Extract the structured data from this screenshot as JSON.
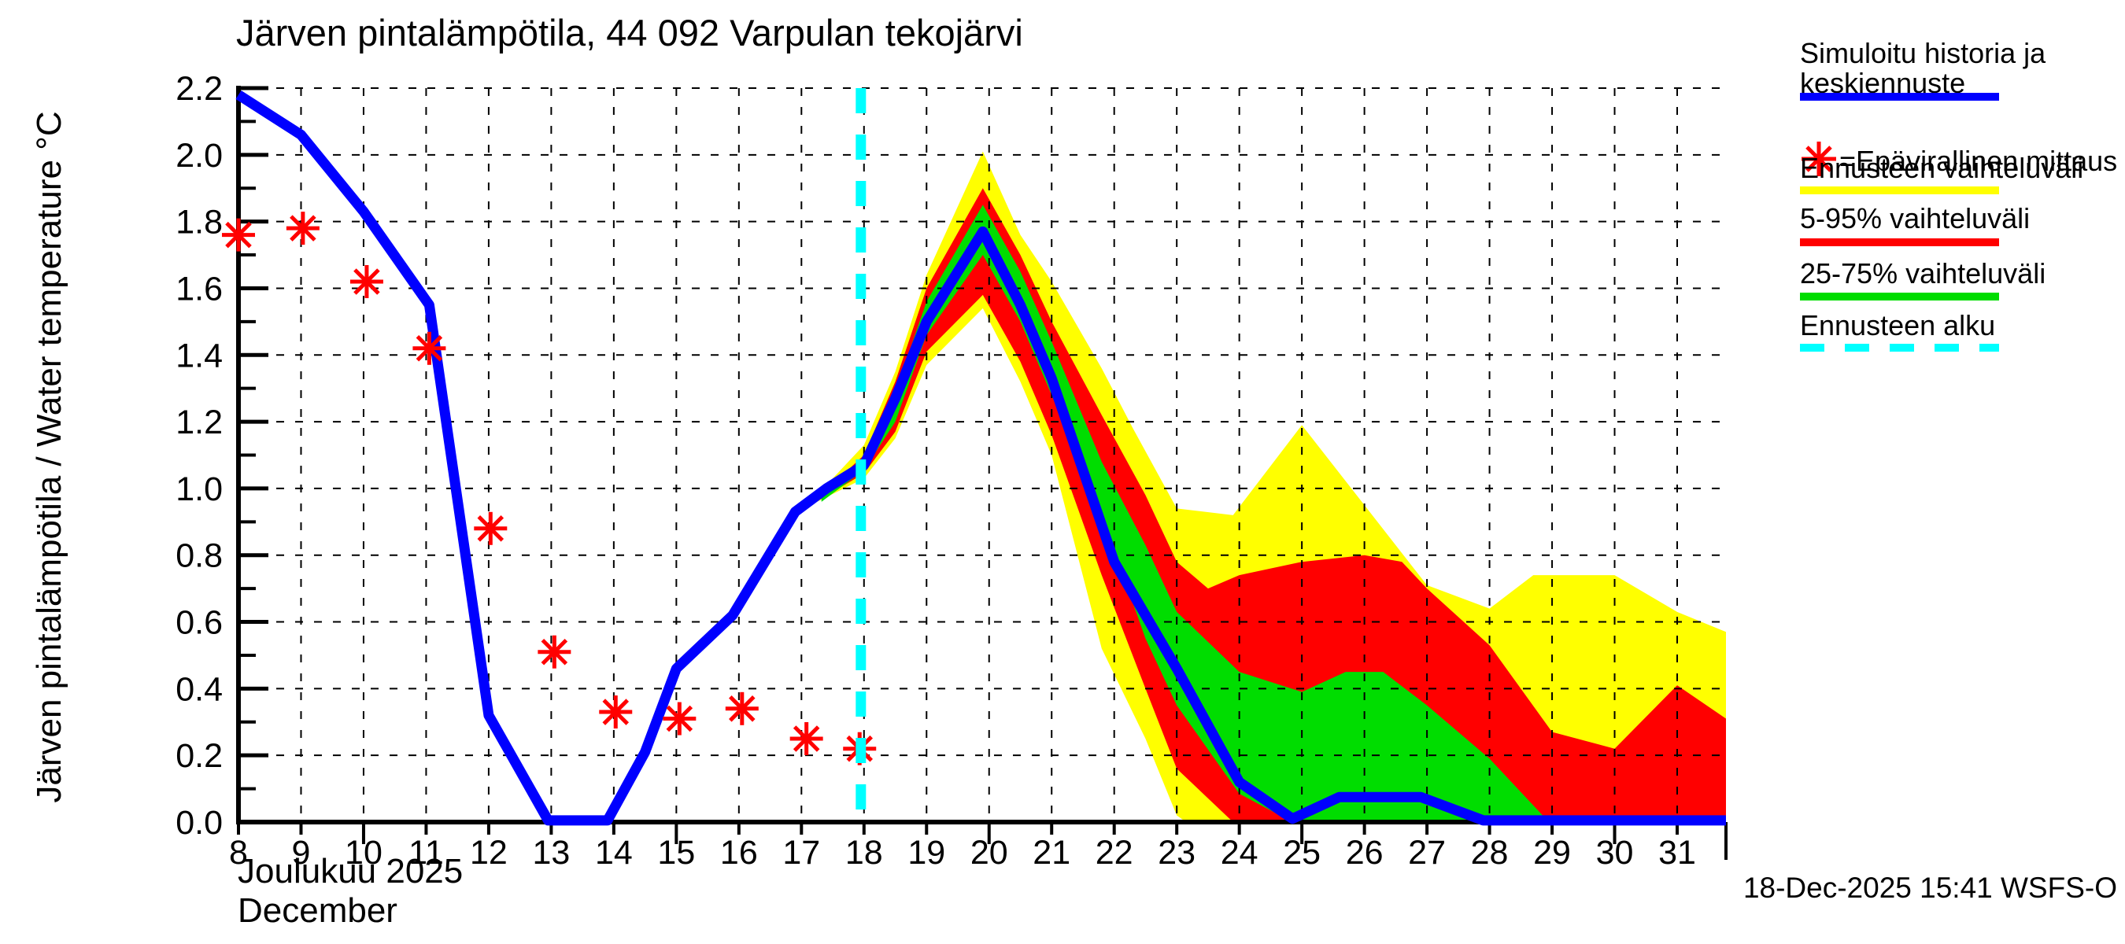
{
  "title": "Järven pintalämpötila, 44 092 Varpulan tekojärvi",
  "footer": {
    "timestamp": "18-Dec-2025 15:41 WSFS-O"
  },
  "legend": {
    "position": "outside-right",
    "items": [
      {
        "label": "Simuloitu historia ja keskiennuste",
        "label_line1": "Simuloitu historia ja",
        "label_line2": "keskiennuste",
        "swatch": "line",
        "color": "#0000ff"
      },
      {
        "label": "=Epävirallinen mittaus",
        "swatch": "asterisk-marker",
        "marker_color": "#ff0000",
        "color": "#ff0000"
      },
      {
        "label": "Ennusteen vaihteluväli",
        "swatch": "line",
        "color": "#ffff00"
      },
      {
        "label": "5-95% vaihteluväli",
        "swatch": "line",
        "color": "#ff0000"
      },
      {
        "label": "25-75% vaihteluväli",
        "swatch": "line",
        "color": "#00dd00"
      },
      {
        "label": "Ennusteen alku",
        "swatch": "dashed-line",
        "color": "#00ffff"
      }
    ]
  },
  "chart_data": {
    "type": "area",
    "title": "Järven pintalämpötila, 44 092 Varpulan tekojärvi",
    "ylabel": "Järven pintalämpötila / Water temperature °C",
    "xlabel_fi": "Joulukuu 2025",
    "xlabel_en": "December",
    "xlim": [
      8,
      31.78
    ],
    "ylim": [
      0,
      2.2
    ],
    "grid": true,
    "yticks": [
      "0.0",
      "0.2",
      "0.4",
      "0.6",
      "0.8",
      "1.0",
      "1.2",
      "1.4",
      "1.6",
      "1.8",
      "2.0",
      "2.2"
    ],
    "xticks": [
      8,
      9,
      10,
      11,
      12,
      13,
      14,
      15,
      16,
      17,
      18,
      19,
      20,
      21,
      22,
      23,
      24,
      25,
      26,
      27,
      28,
      29,
      30,
      31
    ],
    "forecast_start_day": 17.95,
    "series": [
      {
        "name": "Ennusteen vaihteluväli",
        "type": "band",
        "color": "#ffff00",
        "upper": [
          [
            17.25,
            0.98
          ],
          [
            18,
            1.13
          ],
          [
            18.5,
            1.35
          ],
          [
            19,
            1.64
          ],
          [
            19.9,
            2.01
          ],
          [
            20.5,
            1.76
          ],
          [
            21,
            1.62
          ],
          [
            21.8,
            1.36
          ],
          [
            22.3,
            1.18
          ],
          [
            23,
            0.94
          ],
          [
            23.9,
            0.92
          ],
          [
            25,
            1.19
          ],
          [
            26,
            0.95
          ],
          [
            27,
            0.71
          ],
          [
            28,
            0.64
          ],
          [
            28.7,
            0.74
          ],
          [
            30,
            0.74
          ],
          [
            31,
            0.63
          ],
          [
            31.78,
            0.57
          ]
        ],
        "lower": [
          [
            17.25,
            0.96
          ],
          [
            18,
            1.03
          ],
          [
            18.5,
            1.15
          ],
          [
            19,
            1.37
          ],
          [
            19.9,
            1.54
          ],
          [
            20.5,
            1.32
          ],
          [
            21,
            1.1
          ],
          [
            21.8,
            0.52
          ],
          [
            22.5,
            0.25
          ],
          [
            23,
            0.02
          ],
          [
            23.15,
            0.0
          ],
          [
            31.78,
            0.0
          ]
        ]
      },
      {
        "name": "5-95% vaihteluväli",
        "type": "band",
        "color": "#ff0000",
        "upper": [
          [
            17.28,
            0.975
          ],
          [
            18,
            1.1
          ],
          [
            18.5,
            1.32
          ],
          [
            19,
            1.6
          ],
          [
            19.9,
            1.9
          ],
          [
            20.5,
            1.7
          ],
          [
            21,
            1.5
          ],
          [
            21.8,
            1.22
          ],
          [
            22.5,
            0.98
          ],
          [
            23,
            0.78
          ],
          [
            23.5,
            0.7
          ],
          [
            24,
            0.74
          ],
          [
            25,
            0.78
          ],
          [
            26,
            0.8
          ],
          [
            26.6,
            0.78
          ],
          [
            27,
            0.7
          ],
          [
            28,
            0.53
          ],
          [
            29,
            0.27
          ],
          [
            30,
            0.22
          ],
          [
            31,
            0.41
          ],
          [
            31.78,
            0.31
          ]
        ],
        "lower": [
          [
            17.28,
            0.965
          ],
          [
            18,
            1.045
          ],
          [
            18.5,
            1.17
          ],
          [
            19,
            1.41
          ],
          [
            19.9,
            1.58
          ],
          [
            20.5,
            1.38
          ],
          [
            21,
            1.16
          ],
          [
            21.8,
            0.74
          ],
          [
            22.5,
            0.4
          ],
          [
            23,
            0.16
          ],
          [
            23.9,
            0.0
          ],
          [
            31.78,
            0.0
          ]
        ]
      },
      {
        "name": "25-75% vaihteluväli",
        "type": "band",
        "color": "#00dd00",
        "upper": [
          [
            17.32,
            0.97
          ],
          [
            18,
            1.09
          ],
          [
            18.5,
            1.29
          ],
          [
            19,
            1.56
          ],
          [
            19.9,
            1.85
          ],
          [
            20.5,
            1.65
          ],
          [
            21,
            1.44
          ],
          [
            21.8,
            1.08
          ],
          [
            22.5,
            0.83
          ],
          [
            23,
            0.63
          ],
          [
            24,
            0.45
          ],
          [
            25,
            0.39
          ],
          [
            25.7,
            0.45
          ],
          [
            26.3,
            0.45
          ],
          [
            27,
            0.35
          ],
          [
            28,
            0.19
          ],
          [
            28.9,
            0.01
          ]
        ],
        "lower": [
          [
            17.32,
            0.96
          ],
          [
            18,
            1.055
          ],
          [
            18.5,
            1.2
          ],
          [
            19,
            1.46
          ],
          [
            19.9,
            1.7
          ],
          [
            20.5,
            1.5
          ],
          [
            21,
            1.28
          ],
          [
            21.8,
            0.92
          ],
          [
            22.5,
            0.55
          ],
          [
            23,
            0.35
          ],
          [
            24,
            0.085
          ],
          [
            24.85,
            0.0
          ],
          [
            28.9,
            0.0
          ]
        ]
      },
      {
        "name": "Simuloitu historia ja keskiennuste",
        "type": "line",
        "color": "#0000ff",
        "points": [
          [
            8,
            2.18
          ],
          [
            9,
            2.06
          ],
          [
            10,
            1.83
          ],
          [
            11.05,
            1.55
          ],
          [
            12,
            0.32
          ],
          [
            12.95,
            0.005
          ],
          [
            13.9,
            0.005
          ],
          [
            14.5,
            0.21
          ],
          [
            15,
            0.46
          ],
          [
            15.9,
            0.62
          ],
          [
            16.9,
            0.93
          ],
          [
            17.4,
            1.0
          ],
          [
            18,
            1.07
          ],
          [
            18.5,
            1.27
          ],
          [
            19,
            1.5
          ],
          [
            19.9,
            1.77
          ],
          [
            20.5,
            1.55
          ],
          [
            21,
            1.33
          ],
          [
            22,
            0.78
          ],
          [
            23,
            0.46
          ],
          [
            24,
            0.12
          ],
          [
            24.85,
            0.01
          ],
          [
            25.6,
            0.075
          ],
          [
            26.9,
            0.075
          ],
          [
            27.9,
            0.005
          ],
          [
            31.78,
            0.005
          ]
        ]
      },
      {
        "name": "Epävirallinen mittaus",
        "type": "scatter",
        "marker": "asterisk",
        "color": "#ff0000",
        "points": [
          [
            8.0,
            1.76
          ],
          [
            9.03,
            1.78
          ],
          [
            10.05,
            1.62
          ],
          [
            11.05,
            1.42
          ],
          [
            12.03,
            0.88
          ],
          [
            13.05,
            0.51
          ],
          [
            14.03,
            0.33
          ],
          [
            15.05,
            0.31
          ],
          [
            16.05,
            0.34
          ],
          [
            17.08,
            0.25
          ],
          [
            17.93,
            0.22
          ]
        ]
      },
      {
        "name": "Ennusteen alku",
        "type": "vline",
        "color": "#00ffff",
        "x": 17.95
      }
    ]
  }
}
